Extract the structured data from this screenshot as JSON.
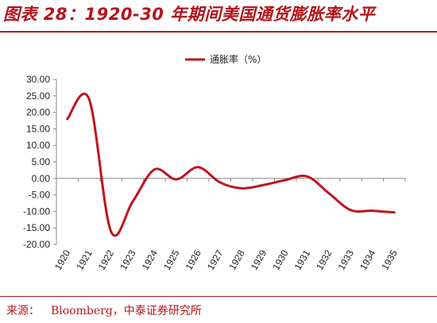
{
  "header": {
    "title": "图表 28：1920-30 年期间美国通货膨胀率水平"
  },
  "footer": {
    "source_label": "来源：",
    "source_value": "Bloomberg，中泰证券研究所"
  },
  "colors": {
    "brand": "#b4151b",
    "series": "#c0141c",
    "axis": "#888888"
  },
  "chart_data": {
    "type": "line",
    "smooth": true,
    "title": "",
    "xlabel": "",
    "ylabel": "",
    "legend_position": "top-center",
    "grid": false,
    "ylim": [
      -20,
      30
    ],
    "yticks": [
      30,
      25,
      20,
      15,
      10,
      5,
      0,
      -5,
      -10,
      -15,
      -20
    ],
    "ytick_labels": [
      "30.00",
      "25.00",
      "20.00",
      "15.00",
      "10.00",
      "5.00",
      "0.00",
      "-5.00",
      "-10.00",
      "-15.00",
      "-20.00"
    ],
    "categories": [
      "1920",
      "1921",
      "1922",
      "1923",
      "1924",
      "1925",
      "1926",
      "1927",
      "1928",
      "1929",
      "1930",
      "1931",
      "1932",
      "1933",
      "1934",
      "1935"
    ],
    "series": [
      {
        "name": "通胀率（%）",
        "values": [
          18,
          24,
          -16,
          -7,
          2.7,
          -0.3,
          3.4,
          -1.2,
          -3,
          -2,
          -0.5,
          0.6,
          -4.5,
          -9.6,
          -9.8,
          -10.3
        ]
      }
    ]
  }
}
